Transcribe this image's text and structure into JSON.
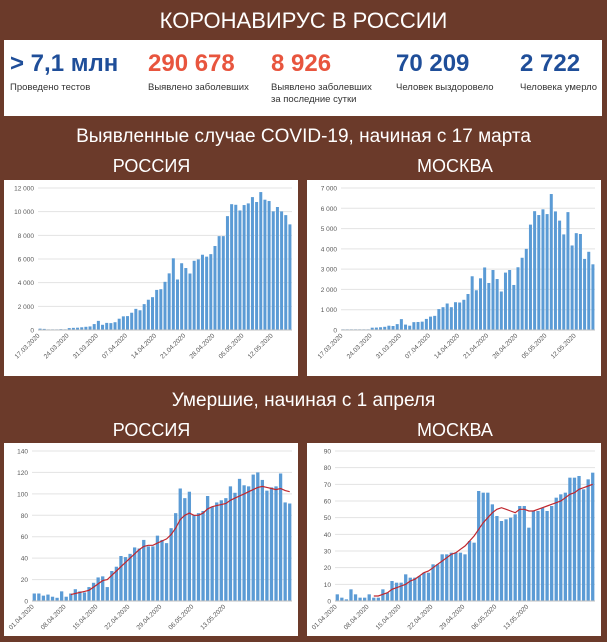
{
  "header": {
    "title": "КОРОНАВИРУС В РОССИИ",
    "section1_title": "Выявленные случае COVID-19, начиная с 17 марта",
    "section2_title": "Умершие, начиная с 1 апреля",
    "russia": "РОССИЯ",
    "moscow": "МОСКВА"
  },
  "stats": [
    {
      "value": "> 7,1 млн",
      "label": "Проведено тестов",
      "color": "#1f4e99"
    },
    {
      "value": "290 678",
      "label": "Выявлено заболевших",
      "color": "#e8553e"
    },
    {
      "value": "8 926",
      "label": "Выявлено заболевших за последние сутки",
      "color": "#e8553e"
    },
    {
      "value": "70 209",
      "label": "Человек выздоровело",
      "color": "#1f4e99"
    },
    {
      "value": "2 722",
      "label": "Человека умерло",
      "color": "#1f4e99"
    }
  ],
  "colors": {
    "bar": "#5b9bd5",
    "trend": "#c0262d",
    "background": "#6b3a2a"
  },
  "chart_data": [
    {
      "type": "bar",
      "series": [
        {
          "values": [
            114,
            93,
            52,
            54,
            53,
            71,
            57,
            163,
            182,
            196,
            228,
            270,
            302,
            501,
            771,
            440,
            601,
            582,
            658,
            954,
            1154,
            1175,
            1459,
            1786,
            1667,
            2186,
            2558,
            2774,
            3388,
            3448,
            4070,
            4785,
            6060,
            4268,
            5642,
            5236,
            4774,
            5849,
            5966,
            6361,
            6198,
            6411,
            7099,
            7933,
            7933,
            9623,
            10633,
            10581,
            10102,
            10559,
            10699,
            11231,
            10817,
            11656,
            11012,
            10899,
            10028,
            10394,
            10024,
            9709,
            8926
          ]
        }
      ],
      "x_tick_labels": [
        "17.03.2020",
        "24.03.2020",
        "31.03.2020",
        "07.04.2020",
        "14.04.2020",
        "21.04.2020",
        "28.04.2020",
        "05.05.2020",
        "12.05.2020"
      ],
      "ylim": [
        0,
        12000
      ],
      "y_ticks": [
        0,
        2000,
        4000,
        6000,
        8000,
        10000,
        12000
      ],
      "y_tick_labels": [
        "0",
        "2 000",
        "4 000",
        "6 000",
        "8 000",
        "10 000",
        "12 000"
      ]
    },
    {
      "type": "bar",
      "series": [
        {
          "values": [
            33,
            33,
            33,
            33,
            33,
            33,
            33,
            114,
            120,
            136,
            157,
            212,
            197,
            290,
            536,
            267,
            212,
            387,
            395,
            412,
            546,
            660,
            697,
            1030,
            1124,
            1306,
            1124,
            1370,
            1355,
            1489,
            1774,
            2649,
            1959,
            2548,
            3083,
            2318,
            2957,
            2512,
            1897,
            2830,
            2957,
            2220,
            3093,
            3561,
            4000,
            5195,
            5858,
            5667,
            5948,
            5714,
            6703,
            5846,
            5392,
            4712,
            5811,
            4167,
            4774,
            4733,
            3505,
            3855,
            3238
          ]
        }
      ],
      "x_tick_labels": [
        "17.03.2020",
        "24.03.2020",
        "31.03.2020",
        "07.04.2020",
        "14.04.2020",
        "21.04.2020",
        "28.04.2020",
        "05.05.2020",
        "12.05.2020"
      ],
      "ylim": [
        0,
        7000
      ],
      "y_ticks": [
        0,
        1000,
        2000,
        3000,
        4000,
        5000,
        6000,
        7000
      ],
      "y_tick_labels": [
        "0",
        "1 000",
        "2 000",
        "3 000",
        "4 000",
        "5 000",
        "6 000",
        "7 000"
      ]
    },
    {
      "type": "bar",
      "series": [
        {
          "values": [
            7,
            7,
            5,
            6,
            4,
            3,
            9,
            4,
            7,
            11,
            9,
            8,
            13,
            17,
            22,
            23,
            13,
            28,
            32,
            42,
            41,
            44,
            50,
            49,
            57,
            51,
            51,
            61,
            57,
            54,
            68,
            82,
            105,
            96,
            102,
            80,
            82,
            84,
            98,
            88,
            92,
            94,
            96,
            107,
            101,
            114,
            108,
            107,
            118,
            120,
            113,
            103,
            106,
            107,
            119,
            92,
            91
          ]
        },
        {
          "type": "line",
          "values": [
            null,
            null,
            null,
            null,
            null,
            null,
            null,
            null,
            6,
            7,
            8,
            9,
            10,
            13,
            16,
            19,
            20,
            24,
            28,
            32,
            36,
            40,
            44,
            48,
            51,
            52,
            52,
            54,
            56,
            58,
            62,
            68,
            76,
            80,
            82,
            80,
            80,
            82,
            86,
            88,
            89,
            90,
            91,
            94,
            96,
            98,
            100,
            102,
            104,
            106,
            107,
            106,
            105,
            104,
            105,
            103,
            102
          ]
        }
      ],
      "x_tick_labels": [
        "01.04.2020",
        "08.04.2020",
        "15.04.2020",
        "22.04.2020",
        "29.04.2020",
        "06.05.2020",
        "13.05.2020"
      ],
      "ylim": [
        0,
        140
      ],
      "y_ticks": [
        0,
        20,
        40,
        60,
        80,
        100,
        120,
        140
      ],
      "y_tick_labels": [
        "0",
        "20",
        "40",
        "60",
        "80",
        "100",
        "120",
        "140"
      ]
    },
    {
      "type": "bar",
      "series": [
        {
          "values": [
            4,
            2,
            1,
            7,
            4,
            2,
            2,
            4,
            2,
            2,
            7,
            5,
            12,
            11,
            11,
            16,
            14,
            14,
            15,
            17,
            17,
            22,
            22,
            28,
            28,
            29,
            29,
            29,
            28,
            36,
            35,
            66,
            65,
            65,
            58,
            51,
            48,
            49,
            50,
            52,
            57,
            57,
            44,
            54,
            54,
            56,
            54,
            57,
            62,
            64,
            65,
            74,
            74,
            75,
            67,
            73,
            77
          ]
        },
        {
          "type": "line",
          "values": [
            null,
            null,
            null,
            null,
            null,
            null,
            null,
            null,
            3,
            3,
            4,
            5,
            7,
            8,
            9,
            10,
            12,
            13,
            15,
            17,
            18,
            20,
            22,
            24,
            26,
            28,
            29,
            31,
            33,
            36,
            39,
            43,
            47,
            50,
            53,
            55,
            56,
            55,
            54,
            53,
            55,
            55,
            54,
            54,
            55,
            56,
            57,
            58,
            59,
            60,
            62,
            64,
            65,
            67,
            68,
            69,
            70
          ]
        }
      ],
      "x_tick_labels": [
        "01.04.2020",
        "08.04.2020",
        "15.04.2020",
        "22.04.2020",
        "29.04.2020",
        "06.05.2020",
        "13.05.2020"
      ],
      "ylim": [
        0,
        90
      ],
      "y_ticks": [
        0,
        10,
        20,
        30,
        40,
        50,
        60,
        70,
        80,
        90
      ],
      "y_tick_labels": [
        "0",
        "10",
        "20",
        "30",
        "40",
        "50",
        "60",
        "70",
        "80",
        "90"
      ]
    }
  ]
}
